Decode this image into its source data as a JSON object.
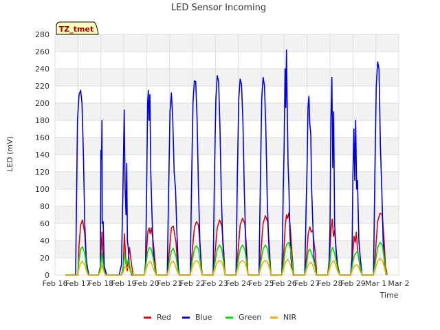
{
  "chart_data": {
    "type": "line",
    "title": "LED Sensor Incoming",
    "xlabel": "Time",
    "ylabel": "LED (mV)",
    "ylim": [
      0,
      280
    ],
    "yticks": [
      0,
      20,
      40,
      60,
      80,
      100,
      120,
      140,
      160,
      180,
      200,
      220,
      240,
      260,
      280
    ],
    "xlim": [
      0,
      15
    ],
    "xticks": [
      {
        "x": 0,
        "label": "Feb 16"
      },
      {
        "x": 1,
        "label": "Feb 17"
      },
      {
        "x": 2,
        "label": "Feb 18"
      },
      {
        "x": 3,
        "label": "Feb 19"
      },
      {
        "x": 4,
        "label": "Feb 20"
      },
      {
        "x": 5,
        "label": "Feb 21"
      },
      {
        "x": 6,
        "label": "Feb 22"
      },
      {
        "x": 7,
        "label": "Feb 23"
      },
      {
        "x": 8,
        "label": "Feb 24"
      },
      {
        "x": 9,
        "label": "Feb 25"
      },
      {
        "x": 10,
        "label": "Feb 26"
      },
      {
        "x": 11,
        "label": "Feb 27"
      },
      {
        "x": 12,
        "label": "Feb 28"
      },
      {
        "x": 13,
        "label": "Feb 29"
      },
      {
        "x": 14,
        "label": "Mar 1"
      },
      {
        "x": 15,
        "label": "Mar 2"
      }
    ],
    "grid": true,
    "legend_position": "bottom-center",
    "annotation": "TZ_tmet",
    "series": [
      {
        "name": "Red",
        "color": "#dd0000",
        "x": [
          0.45,
          1.0,
          1.05,
          1.12,
          1.2,
          1.3,
          1.38,
          1.45,
          1.9,
          1.98,
          2.05,
          2.12,
          2.2,
          2.9,
          2.98,
          3.03,
          3.08,
          3.15,
          3.25,
          3.35,
          3.42,
          3.9,
          3.98,
          4.05,
          4.1,
          4.15,
          4.2,
          4.28,
          4.36,
          4.42,
          4.9,
          4.98,
          5.08,
          5.16,
          5.28,
          5.35,
          5.42,
          5.9,
          5.98,
          6.08,
          6.17,
          6.26,
          6.34,
          6.42,
          6.9,
          6.98,
          7.08,
          7.18,
          7.28,
          7.36,
          7.42,
          7.9,
          7.98,
          8.08,
          8.18,
          8.28,
          8.36,
          8.42,
          8.9,
          8.98,
          9.08,
          9.18,
          9.28,
          9.36,
          9.42,
          9.9,
          9.98,
          10.05,
          10.1,
          10.15,
          10.2,
          10.27,
          10.34,
          10.42,
          10.9,
          10.98,
          11.05,
          11.12,
          11.18,
          11.25,
          11.3,
          11.36,
          11.42,
          11.9,
          11.98,
          12.05,
          12.1,
          12.15,
          12.2,
          12.25,
          12.3,
          12.36,
          12.42,
          12.9,
          12.98,
          13.05,
          13.1,
          13.15,
          13.2,
          13.25,
          13.32,
          13.4,
          13.9,
          13.98,
          14.08,
          14.18,
          14.28,
          14.36,
          14.42,
          14.5
        ],
        "y": [
          0,
          0,
          35,
          58,
          64,
          48,
          10,
          0,
          0,
          10,
          50,
          10,
          0,
          0,
          10,
          48,
          20,
          5,
          32,
          10,
          0,
          0,
          22,
          50,
          55,
          48,
          55,
          40,
          18,
          0,
          0,
          25,
          55,
          57,
          38,
          12,
          0,
          0,
          25,
          55,
          62,
          58,
          30,
          0,
          0,
          25,
          55,
          64,
          57,
          30,
          0,
          0,
          25,
          58,
          66,
          60,
          30,
          0,
          0,
          25,
          60,
          69,
          62,
          30,
          0,
          0,
          25,
          58,
          70,
          66,
          72,
          55,
          25,
          0,
          0,
          22,
          48,
          56,
          50,
          52,
          38,
          25,
          0,
          0,
          22,
          55,
          65,
          45,
          52,
          35,
          20,
          8,
          0,
          0,
          20,
          45,
          38,
          50,
          30,
          20,
          8,
          0,
          0,
          25,
          62,
          72,
          70,
          40,
          10,
          0
        ]
      },
      {
        "name": "Blue",
        "color": "#0000dd",
        "x": [
          0.45,
          0.9,
          0.98,
          1.05,
          1.12,
          1.18,
          1.24,
          1.3,
          1.36,
          1.42,
          1.48,
          1.9,
          1.98,
          2.0,
          2.03,
          2.05,
          2.06,
          2.1,
          2.15,
          2.25,
          2.8,
          2.9,
          2.96,
          3.02,
          3.06,
          3.1,
          3.13,
          3.16,
          3.2,
          3.25,
          3.35,
          3.4,
          3.9,
          3.95,
          4.0,
          4.04,
          4.07,
          4.1,
          4.14,
          4.18,
          4.22,
          4.28,
          4.35,
          4.42,
          4.9,
          4.96,
          5.02,
          5.08,
          5.14,
          5.2,
          5.26,
          5.32,
          5.38,
          5.42,
          5.9,
          5.96,
          6.02,
          6.08,
          6.14,
          6.2,
          6.26,
          6.32,
          6.38,
          6.42,
          6.9,
          6.96,
          7.02,
          7.08,
          7.14,
          7.2,
          7.26,
          7.32,
          7.38,
          7.42,
          7.9,
          7.96,
          8.02,
          8.08,
          8.14,
          8.2,
          8.26,
          8.32,
          8.38,
          8.42,
          8.9,
          8.96,
          9.02,
          9.08,
          9.14,
          9.2,
          9.26,
          9.32,
          9.38,
          9.42,
          9.9,
          9.96,
          10.0,
          10.04,
          10.07,
          10.1,
          10.13,
          10.17,
          10.21,
          10.25,
          10.3,
          10.34,
          10.4,
          10.9,
          10.96,
          11.0,
          11.04,
          11.08,
          11.12,
          11.16,
          11.2,
          11.25,
          11.3,
          11.36,
          11.4,
          11.9,
          11.96,
          12.0,
          12.04,
          12.08,
          12.12,
          12.16,
          12.2,
          12.26,
          12.32,
          12.38,
          12.42,
          12.9,
          12.96,
          13.0,
          13.04,
          13.08,
          13.12,
          13.16,
          13.2,
          13.26,
          13.32,
          13.4,
          13.9,
          13.96,
          14.02,
          14.08,
          14.14,
          14.2,
          14.26,
          14.32,
          14.38,
          14.45
        ],
        "y": [
          0,
          0,
          180,
          210,
          215,
          200,
          140,
          60,
          20,
          8,
          0,
          0,
          10,
          145,
          135,
          180,
          60,
          62,
          10,
          0,
          0,
          12,
          95,
          192,
          100,
          70,
          130,
          40,
          30,
          8,
          0,
          0,
          0,
          12,
          100,
          200,
          215,
          180,
          210,
          120,
          80,
          30,
          8,
          0,
          0,
          100,
          190,
          212,
          180,
          120,
          100,
          50,
          10,
          0,
          0,
          110,
          200,
          226,
          225,
          180,
          100,
          40,
          10,
          0,
          0,
          120,
          205,
          232,
          225,
          170,
          90,
          40,
          10,
          0,
          0,
          120,
          205,
          228,
          222,
          180,
          100,
          40,
          10,
          0,
          0,
          110,
          205,
          230,
          220,
          170,
          90,
          40,
          10,
          0,
          0,
          100,
          150,
          240,
          195,
          262,
          200,
          130,
          100,
          50,
          20,
          8,
          0,
          0,
          80,
          128,
          195,
          208,
          175,
          165,
          100,
          60,
          20,
          8,
          0,
          0,
          10,
          55,
          180,
          230,
          125,
          190,
          60,
          30,
          10,
          5,
          0,
          0,
          20,
          115,
          170,
          110,
          180,
          100,
          110,
          40,
          20,
          0,
          0,
          120,
          220,
          248,
          240,
          150,
          100,
          40,
          10,
          0
        ]
      },
      {
        "name": "Green",
        "color": "#00dd00",
        "x": [
          0.45,
          0.98,
          1.05,
          1.12,
          1.2,
          1.3,
          1.38,
          1.45,
          1.9,
          1.98,
          2.05,
          2.12,
          2.2,
          2.9,
          2.98,
          3.03,
          3.1,
          3.2,
          3.3,
          3.42,
          3.9,
          3.98,
          4.05,
          4.12,
          4.2,
          4.28,
          4.36,
          4.42,
          4.9,
          4.98,
          5.08,
          5.16,
          5.28,
          5.35,
          5.42,
          5.9,
          5.98,
          6.08,
          6.17,
          6.26,
          6.34,
          6.42,
          6.9,
          6.98,
          7.08,
          7.18,
          7.28,
          7.36,
          7.42,
          7.9,
          7.98,
          8.08,
          8.18,
          8.28,
          8.36,
          8.42,
          8.9,
          8.98,
          9.08,
          9.18,
          9.28,
          9.36,
          9.42,
          9.9,
          9.98,
          10.05,
          10.12,
          10.2,
          10.28,
          10.36,
          10.42,
          10.9,
          10.98,
          11.05,
          11.12,
          11.2,
          11.28,
          11.36,
          11.42,
          11.9,
          11.98,
          12.05,
          12.12,
          12.2,
          12.28,
          12.36,
          12.42,
          12.9,
          12.98,
          13.05,
          13.12,
          13.2,
          13.28,
          13.36,
          13.42,
          13.9,
          13.98,
          14.08,
          14.18,
          14.28,
          14.36,
          14.42,
          14.5
        ],
        "y": [
          0,
          0,
          18,
          30,
          33,
          25,
          8,
          0,
          0,
          8,
          25,
          8,
          0,
          0,
          8,
          25,
          12,
          18,
          6,
          0,
          0,
          15,
          28,
          32,
          30,
          20,
          8,
          0,
          0,
          15,
          28,
          31,
          22,
          8,
          0,
          0,
          15,
          30,
          34,
          30,
          15,
          0,
          0,
          15,
          30,
          35,
          30,
          15,
          0,
          0,
          15,
          30,
          35,
          30,
          15,
          0,
          0,
          15,
          30,
          35,
          30,
          15,
          0,
          0,
          15,
          30,
          36,
          38,
          30,
          12,
          0,
          0,
          12,
          28,
          30,
          25,
          18,
          8,
          0,
          0,
          12,
          28,
          32,
          25,
          15,
          5,
          0,
          0,
          12,
          22,
          25,
          28,
          15,
          5,
          0,
          0,
          15,
          32,
          38,
          35,
          20,
          5,
          0
        ]
      },
      {
        "name": "NIR",
        "color": "#ffaa00",
        "x": [
          0.45,
          0.98,
          1.05,
          1.12,
          1.2,
          1.3,
          1.38,
          1.45,
          1.9,
          1.98,
          2.05,
          2.12,
          2.2,
          2.9,
          2.98,
          3.05,
          3.12,
          3.2,
          3.3,
          3.42,
          3.9,
          3.98,
          4.08,
          4.16,
          4.24,
          4.32,
          4.42,
          4.9,
          4.98,
          5.08,
          5.16,
          5.24,
          5.32,
          5.42,
          5.9,
          5.98,
          6.08,
          6.17,
          6.26,
          6.34,
          6.42,
          6.9,
          6.98,
          7.08,
          7.18,
          7.28,
          7.36,
          7.42,
          7.9,
          7.98,
          8.08,
          8.18,
          8.28,
          8.36,
          8.42,
          8.9,
          8.98,
          9.08,
          9.18,
          9.28,
          9.36,
          9.42,
          9.9,
          9.98,
          10.08,
          10.16,
          10.24,
          10.32,
          10.42,
          10.9,
          10.98,
          11.08,
          11.16,
          11.24,
          11.32,
          11.42,
          11.9,
          11.98,
          12.08,
          12.16,
          12.24,
          12.32,
          12.42,
          12.9,
          12.98,
          13.08,
          13.16,
          13.24,
          13.32,
          13.42,
          13.9,
          13.98,
          14.08,
          14.18,
          14.28,
          14.36,
          14.42,
          14.5
        ],
        "y": [
          0,
          0,
          8,
          14,
          16,
          12,
          4,
          0,
          0,
          4,
          12,
          4,
          0,
          0,
          4,
          10,
          8,
          10,
          3,
          0,
          0,
          8,
          14,
          16,
          12,
          5,
          0,
          0,
          8,
          15,
          16,
          12,
          5,
          0,
          0,
          8,
          15,
          17,
          15,
          8,
          0,
          0,
          8,
          15,
          17,
          15,
          8,
          0,
          0,
          8,
          15,
          17,
          15,
          8,
          0,
          0,
          8,
          15,
          17,
          15,
          8,
          0,
          0,
          8,
          16,
          18,
          15,
          7,
          0,
          0,
          7,
          13,
          15,
          12,
          5,
          0,
          0,
          7,
          15,
          17,
          12,
          5,
          0,
          0,
          6,
          11,
          12,
          10,
          4,
          0,
          0,
          8,
          16,
          19,
          17,
          10,
          3,
          0
        ]
      }
    ]
  }
}
